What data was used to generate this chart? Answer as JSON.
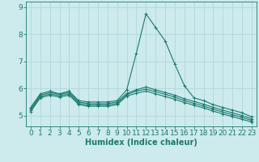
{
  "xlabel": "Humidex (Indice chaleur)",
  "background_color": "#cdeaed",
  "grid_color": "#b0d8dc",
  "line_color": "#1a7a6e",
  "x_values": [
    0,
    1,
    2,
    3,
    4,
    5,
    6,
    7,
    8,
    9,
    10,
    11,
    12,
    13,
    14,
    15,
    16,
    17,
    18,
    19,
    20,
    21,
    22,
    23
  ],
  "lines": [
    [
      5.3,
      5.8,
      5.9,
      5.8,
      5.9,
      5.55,
      5.5,
      5.5,
      5.5,
      5.55,
      5.95,
      7.3,
      8.75,
      8.25,
      7.75,
      6.9,
      6.1,
      5.65,
      5.55,
      5.4,
      5.3,
      5.2,
      5.1,
      4.95
    ],
    [
      5.25,
      5.75,
      5.85,
      5.78,
      5.85,
      5.5,
      5.44,
      5.44,
      5.44,
      5.5,
      5.82,
      5.95,
      6.05,
      5.95,
      5.85,
      5.75,
      5.62,
      5.52,
      5.42,
      5.3,
      5.2,
      5.1,
      5.0,
      4.88
    ],
    [
      5.2,
      5.7,
      5.8,
      5.73,
      5.8,
      5.45,
      5.39,
      5.39,
      5.39,
      5.45,
      5.77,
      5.9,
      5.97,
      5.88,
      5.78,
      5.68,
      5.55,
      5.45,
      5.35,
      5.23,
      5.13,
      5.03,
      4.93,
      4.82
    ],
    [
      5.15,
      5.65,
      5.75,
      5.68,
      5.75,
      5.4,
      5.34,
      5.34,
      5.34,
      5.4,
      5.72,
      5.82,
      5.9,
      5.8,
      5.7,
      5.6,
      5.48,
      5.38,
      5.28,
      5.16,
      5.06,
      4.96,
      4.86,
      4.76
    ]
  ],
  "ylim": [
    4.6,
    9.2
  ],
  "xlim": [
    -0.5,
    23.5
  ],
  "yticks": [
    5,
    6,
    7,
    8,
    9
  ],
  "xticks": [
    0,
    1,
    2,
    3,
    4,
    5,
    6,
    7,
    8,
    9,
    10,
    11,
    12,
    13,
    14,
    15,
    16,
    17,
    18,
    19,
    20,
    21,
    22,
    23
  ],
  "marker": "+",
  "markersize": 3,
  "linewidth": 0.8,
  "font_size": 6.5
}
